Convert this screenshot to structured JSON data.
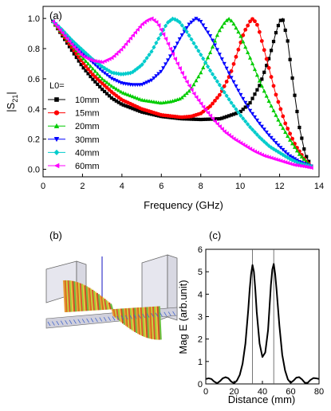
{
  "panels": {
    "a": "(a)",
    "b": "(b)",
    "c": "(c)"
  },
  "chart_data": [
    {
      "type": "line",
      "panel": "(a)",
      "xlabel": "Frequency (GHz)",
      "ylabel_main": "|S",
      "ylabel_sub": "21",
      "ylabel_end": "|",
      "xlim": [
        0,
        14
      ],
      "ylim": [
        -0.05,
        1.08
      ],
      "xticks": [
        0,
        2,
        4,
        6,
        8,
        10,
        12,
        14
      ],
      "yticks": [
        0.0,
        0.2,
        0.4,
        0.6,
        0.8,
        1.0
      ],
      "legend_title": "L0=",
      "legend_position": "left-middle",
      "series": [
        {
          "name": "10mm",
          "color": "#000000",
          "marker": "square",
          "x": [
            0.5,
            1,
            1.5,
            2,
            2.5,
            3,
            3.5,
            4,
            5,
            6,
            7,
            8,
            9,
            10,
            10.5,
            11,
            11.5,
            11.8,
            12.0,
            12.15,
            12.4,
            12.7,
            13.0,
            13.3,
            13.6
          ],
          "y": [
            0.98,
            0.88,
            0.78,
            0.68,
            0.6,
            0.53,
            0.47,
            0.43,
            0.38,
            0.35,
            0.335,
            0.33,
            0.335,
            0.38,
            0.44,
            0.56,
            0.75,
            0.9,
            0.98,
            1.0,
            0.86,
            0.55,
            0.28,
            0.1,
            0.02
          ]
        },
        {
          "name": "15mm",
          "color": "#ff0000",
          "marker": "circle",
          "x": [
            0.5,
            1,
            1.5,
            2,
            2.5,
            3,
            3.5,
            4,
            5,
            6,
            7,
            7.5,
            8,
            8.5,
            9,
            9.5,
            9.9,
            10.2,
            10.5,
            10.65,
            10.9,
            11.3,
            11.8,
            12.3,
            12.8,
            13.3,
            13.6
          ],
          "y": [
            0.98,
            0.89,
            0.8,
            0.71,
            0.63,
            0.57,
            0.51,
            0.46,
            0.4,
            0.36,
            0.345,
            0.35,
            0.37,
            0.42,
            0.5,
            0.63,
            0.79,
            0.91,
            0.98,
            1.0,
            0.95,
            0.75,
            0.5,
            0.3,
            0.16,
            0.06,
            0.02
          ]
        },
        {
          "name": "20mm",
          "color": "#00cc00",
          "marker": "triangle",
          "x": [
            0.5,
            1,
            1.5,
            2,
            2.5,
            3,
            3.5,
            4,
            5,
            6,
            6.5,
            7,
            7.5,
            8,
            8.5,
            8.9,
            9.2,
            9.4,
            9.6,
            10,
            10.5,
            11,
            11.5,
            12,
            12.5,
            13,
            13.6
          ],
          "y": [
            0.98,
            0.9,
            0.82,
            0.74,
            0.67,
            0.6,
            0.55,
            0.51,
            0.46,
            0.44,
            0.45,
            0.47,
            0.53,
            0.64,
            0.78,
            0.91,
            0.97,
            1.0,
            0.98,
            0.89,
            0.74,
            0.58,
            0.44,
            0.31,
            0.2,
            0.1,
            0.02
          ]
        },
        {
          "name": "30mm",
          "color": "#0000ff",
          "marker": "triangle-down",
          "x": [
            0.5,
            1,
            1.5,
            2,
            2.5,
            3,
            3.5,
            4,
            4.5,
            5,
            5.5,
            6,
            6.5,
            7,
            7.4,
            7.75,
            8.0,
            8.5,
            9,
            9.5,
            10,
            10.5,
            11,
            11.5,
            12,
            12.5,
            13,
            13.6
          ],
          "y": [
            0.98,
            0.91,
            0.84,
            0.77,
            0.71,
            0.65,
            0.6,
            0.57,
            0.56,
            0.56,
            0.59,
            0.65,
            0.76,
            0.88,
            0.96,
            1.0,
            0.98,
            0.88,
            0.75,
            0.62,
            0.5,
            0.39,
            0.3,
            0.22,
            0.15,
            0.09,
            0.05,
            0.02
          ]
        },
        {
          "name": "40mm",
          "color": "#00cccc",
          "marker": "diamond",
          "x": [
            0.5,
            1,
            1.5,
            2,
            2.5,
            3,
            3.5,
            4,
            4.5,
            5,
            5.5,
            6,
            6.3,
            6.6,
            6.9,
            7.3,
            8,
            8.5,
            9,
            9.5,
            10,
            10.5,
            11,
            11.5,
            12,
            12.5,
            13,
            13.6
          ],
          "y": [
            0.98,
            0.92,
            0.85,
            0.79,
            0.73,
            0.68,
            0.64,
            0.63,
            0.64,
            0.69,
            0.78,
            0.9,
            0.97,
            1.0,
            0.98,
            0.91,
            0.76,
            0.65,
            0.55,
            0.45,
            0.36,
            0.28,
            0.21,
            0.15,
            0.11,
            0.07,
            0.04,
            0.02
          ]
        },
        {
          "name": "60mm",
          "color": "#ff00ff",
          "marker": "triangle-left",
          "x": [
            0.5,
            1,
            1.5,
            2,
            2.5,
            3,
            3.5,
            4,
            4.5,
            5,
            5.3,
            5.5,
            5.8,
            6.2,
            6.7,
            7.2,
            7.7,
            8.2,
            8.7,
            9.2,
            9.7,
            10.2,
            10.7,
            11.2,
            11.7,
            12.2,
            12.7,
            13.2,
            13.6
          ],
          "y": [
            0.98,
            0.9,
            0.82,
            0.75,
            0.72,
            0.71,
            0.74,
            0.8,
            0.88,
            0.96,
            0.99,
            1.0,
            0.97,
            0.87,
            0.73,
            0.6,
            0.49,
            0.4,
            0.32,
            0.25,
            0.2,
            0.16,
            0.12,
            0.09,
            0.07,
            0.05,
            0.03,
            0.02,
            0.01
          ]
        }
      ]
    },
    {
      "type": "line",
      "panel": "(c)",
      "xlabel": "Distance (mm)",
      "ylabel": "Mag E (arb.unit)",
      "xlim": [
        0,
        80
      ],
      "ylim": [
        0,
        6
      ],
      "xticks": [
        0,
        20,
        40,
        60,
        80
      ],
      "yticks": [
        0,
        1,
        2,
        3,
        4,
        5,
        6
      ],
      "vlines": [
        33,
        48
      ],
      "series": [
        {
          "name": "",
          "color": "#000000",
          "x": [
            0,
            2,
            4,
            6,
            8,
            10,
            12,
            14,
            16,
            18,
            20,
            22,
            24,
            26,
            28,
            30,
            31,
            32,
            33,
            34,
            35,
            36,
            38,
            40,
            42,
            44,
            45,
            46,
            47,
            48,
            49,
            50,
            52,
            54,
            56,
            58,
            60,
            62,
            64,
            66,
            68,
            70,
            72,
            74,
            76,
            78,
            80
          ],
          "y": [
            0.22,
            0.25,
            0.22,
            0.1,
            0.03,
            0.12,
            0.25,
            0.3,
            0.25,
            0.1,
            0.03,
            0.15,
            0.4,
            0.9,
            1.8,
            3.3,
            4.2,
            4.9,
            5.3,
            5.0,
            4.2,
            3.2,
            1.8,
            1.2,
            1.4,
            2.4,
            3.4,
            4.4,
            5.1,
            5.35,
            4.9,
            4.2,
            2.6,
            1.3,
            0.6,
            0.2,
            0.05,
            0.15,
            0.28,
            0.3,
            0.2,
            0.05,
            0.05,
            0.18,
            0.26,
            0.25,
            0.22
          ]
        }
      ]
    }
  ]
}
